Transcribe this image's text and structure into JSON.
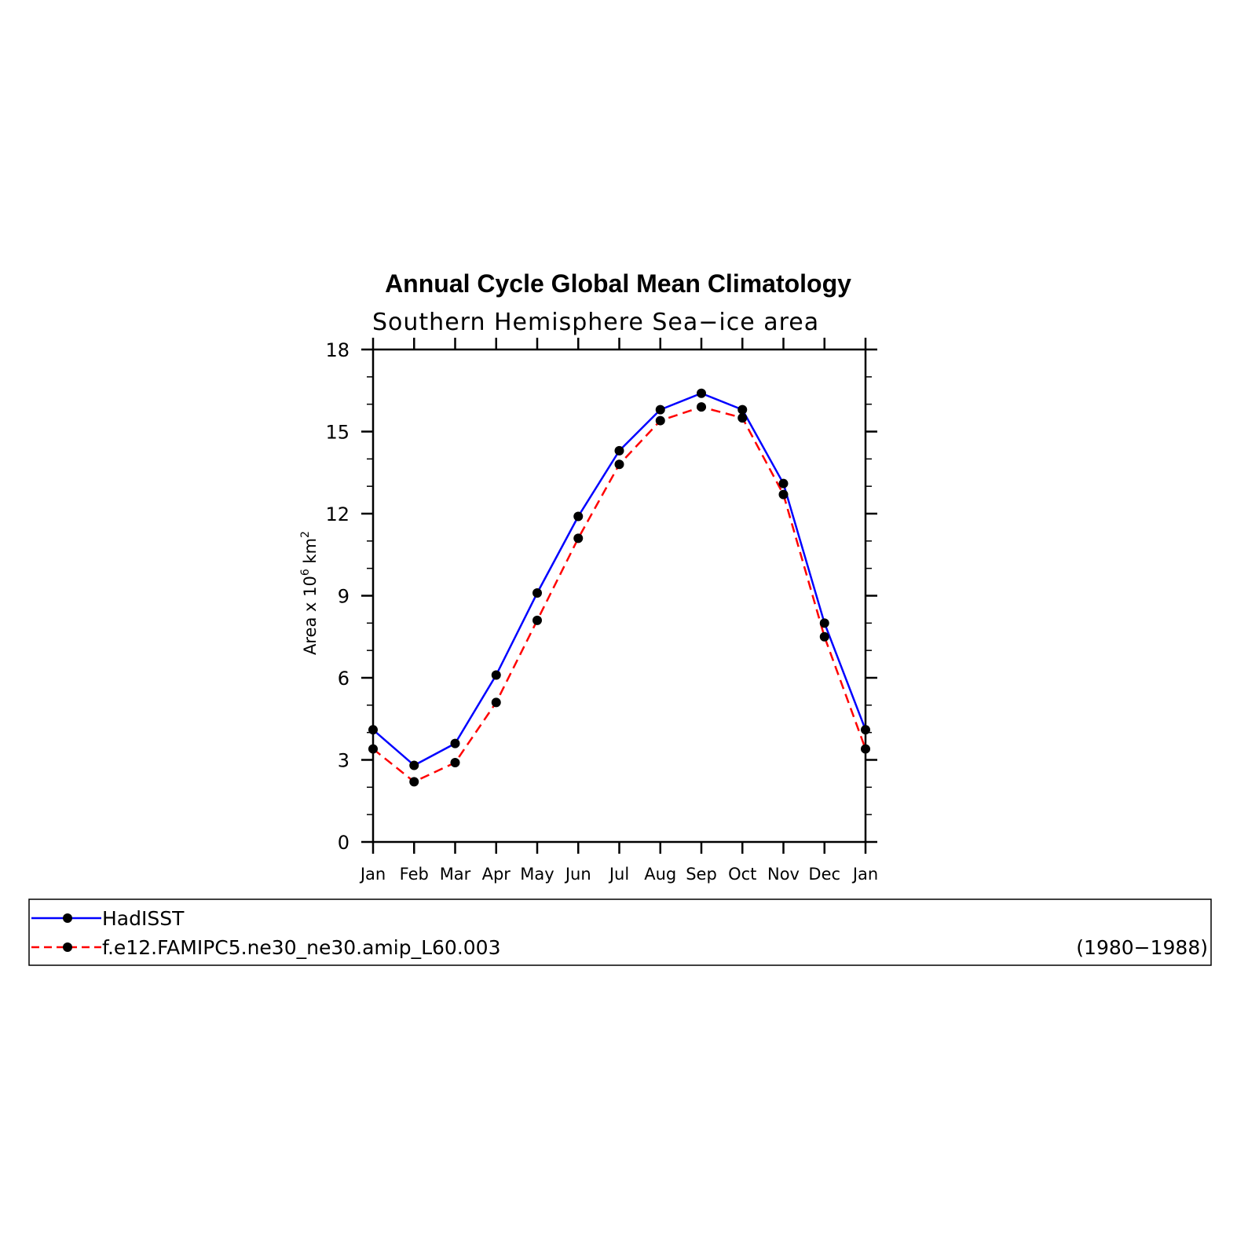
{
  "chart_data": {
    "type": "line",
    "title": "Annual Cycle Global Mean Climatology",
    "subtitle": "Southern Hemisphere Sea−ice area",
    "ylabel": "Area x 10",
    "ylabel_exponent": "6",
    "ylabel_unit": "km",
    "ylabel_unit_exponent": "2",
    "xlabel": "",
    "ylim": [
      0,
      18
    ],
    "y_ticks": [
      "0",
      "3",
      "6",
      "9",
      "12",
      "15",
      "18"
    ],
    "categories": [
      "Jan",
      "Feb",
      "Mar",
      "Apr",
      "May",
      "Jun",
      "Jul",
      "Aug",
      "Sep",
      "Oct",
      "Nov",
      "Dec",
      "Jan"
    ],
    "grid": false,
    "legend_position": "bottom",
    "legend_note": "(1980−1988)",
    "series": [
      {
        "name": "HadISST",
        "color": "#0000ff",
        "style": "solid",
        "marker": "filled-circle",
        "values": [
          4.1,
          2.8,
          3.6,
          6.1,
          9.1,
          11.9,
          14.3,
          15.8,
          16.4,
          15.8,
          13.1,
          8.0,
          4.1
        ]
      },
      {
        "name": "f.e12.FAMIPC5.ne30_ne30.amip_L60.003",
        "color": "#ff0000",
        "style": "dashed",
        "marker": "filled-circle",
        "values": [
          3.4,
          2.2,
          2.9,
          5.1,
          8.1,
          11.1,
          13.8,
          15.4,
          15.9,
          15.5,
          12.7,
          7.5,
          3.4
        ]
      }
    ]
  }
}
